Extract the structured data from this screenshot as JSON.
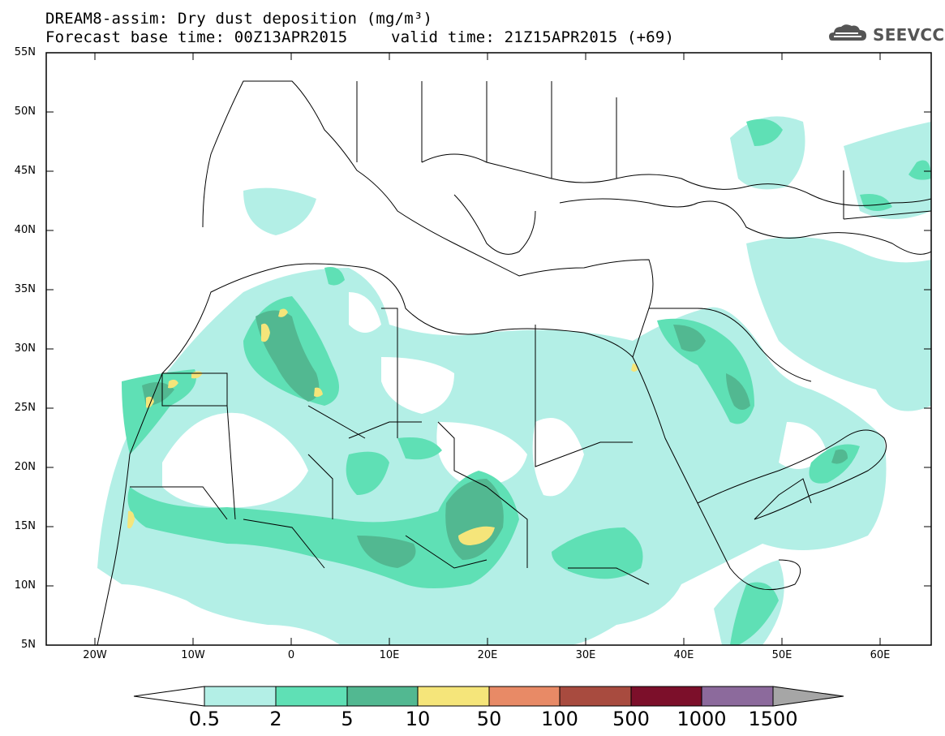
{
  "header": {
    "title": "DREAM8-assim: Dry dust deposition (mg/m³)",
    "base_time": "Forecast base time: 00Z13APR2015",
    "valid_time": "valid time: 21Z15APR2015 (+69)"
  },
  "logo": {
    "text": "SEEVCCC",
    "icon": "cloud-icon"
  },
  "axes": {
    "latitudes": [
      "55N",
      "50N",
      "45N",
      "40N",
      "35N",
      "30N",
      "25N",
      "20N",
      "15N",
      "10N",
      "5N"
    ],
    "longitudes": [
      "20W",
      "10W",
      "0",
      "10E",
      "20E",
      "30E",
      "40E",
      "50E",
      "60E"
    ]
  },
  "colorbar": {
    "labels": [
      "0.5",
      "2",
      "5",
      "10",
      "50",
      "100",
      "500",
      "1000",
      "1500"
    ],
    "colors": [
      "#b3efe6",
      "#5fe0b5",
      "#52b891",
      "#f5e57a",
      "#e88a66",
      "#a84b3f",
      "#7c0f2a",
      "#8c6a9c",
      "#a6a6a6"
    ]
  }
}
